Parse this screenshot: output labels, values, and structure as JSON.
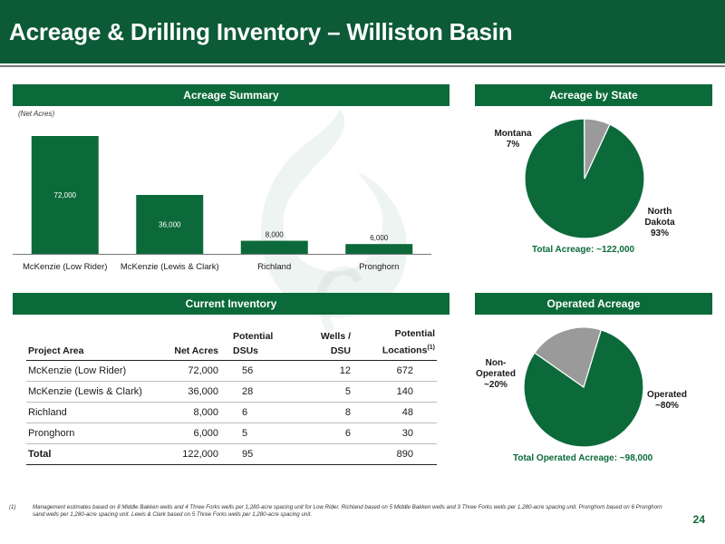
{
  "title": "Acreage & Drilling Inventory – Williston Basin",
  "banners": {
    "acreage_summary": "Acreage Summary",
    "acreage_by_state": "Acreage by State",
    "current_inventory": "Current Inventory",
    "operated_acreage": "Operated Acreage"
  },
  "net_acres_note": "(Net Acres)",
  "colors": {
    "brand_green": "#0c6a3a",
    "gray": "#9a9a9a"
  },
  "chart_data": [
    {
      "type": "bar",
      "ylabel": "(Net Acres)",
      "categories": [
        "McKenzie (Low Rider)",
        "McKenzie (Lewis & Clark)",
        "Richland",
        "Pronghorn"
      ],
      "values": [
        72000,
        36000,
        8000,
        6000
      ],
      "value_labels": [
        "72,000",
        "36,000",
        "8,000",
        "6,000"
      ],
      "ylim": [
        0,
        72000
      ]
    },
    {
      "type": "pie",
      "title": "Acreage by State",
      "slices": [
        {
          "name": "North Dakota",
          "label_lines": [
            "North",
            "Dakota",
            "93%"
          ],
          "value": 93,
          "color": "#0c6a3a"
        },
        {
          "name": "Montana",
          "label_lines": [
            "Montana",
            "7%"
          ],
          "value": 7,
          "color": "#9a9a9a"
        }
      ],
      "total_label": "Total Acreage: ~122,000"
    },
    {
      "type": "pie",
      "title": "Operated Acreage",
      "slices": [
        {
          "name": "Operated",
          "label_lines": [
            "Operated",
            "~80%"
          ],
          "value": 80,
          "color": "#0c6a3a"
        },
        {
          "name": "Non-Operated",
          "label_lines": [
            "Non-",
            "Operated",
            "~20%"
          ],
          "value": 20,
          "color": "#9a9a9a"
        }
      ],
      "total_label": "Total Operated Acreage: ~98,000"
    }
  ],
  "inventory_table": {
    "headers": {
      "project_area": "Project Area",
      "net_acres": "Net Acres",
      "dsus_line1": "Potential",
      "dsus_line2": "DSUs",
      "wells_line1": "Wells /",
      "wells_line2": "DSU",
      "locations_line1": "Potential",
      "locations_line2": "Locations",
      "locations_sup": "(1)"
    },
    "rows": [
      {
        "project": "McKenzie (Low Rider)",
        "net_acres": "72,000",
        "dsus": "56",
        "wells": "12",
        "locations": "672"
      },
      {
        "project": "McKenzie (Lewis & Clark)",
        "net_acres": "36,000",
        "dsus": "28",
        "wells": "5",
        "locations": "140"
      },
      {
        "project": "Richland",
        "net_acres": "8,000",
        "dsus": "6",
        "wells": "8",
        "locations": "48"
      },
      {
        "project": "Pronghorn",
        "net_acres": "6,000",
        "dsus": "5",
        "wells": "6",
        "locations": "30"
      }
    ],
    "total": {
      "project": "Total",
      "net_acres": "122,000",
      "dsus": "95",
      "wells": "",
      "locations": "890"
    }
  },
  "footnote": {
    "marker": "(1)",
    "text": "Management estimates based on 8 Middle Bakken wells and 4 Three Forks wells per 1,280-acre spacing unit for Low Rider. Richland based on 5 Middle Bakken wells and 3 Three Forks wells per 1,280-acre spacing unit. Pronghorn based on 6 Pronghorn sand wells per 1,280-acre spacing unit. Lewis & Clark based on 5 Three Forks wells per 1,280-acre spacing unit."
  },
  "page_number": "24"
}
